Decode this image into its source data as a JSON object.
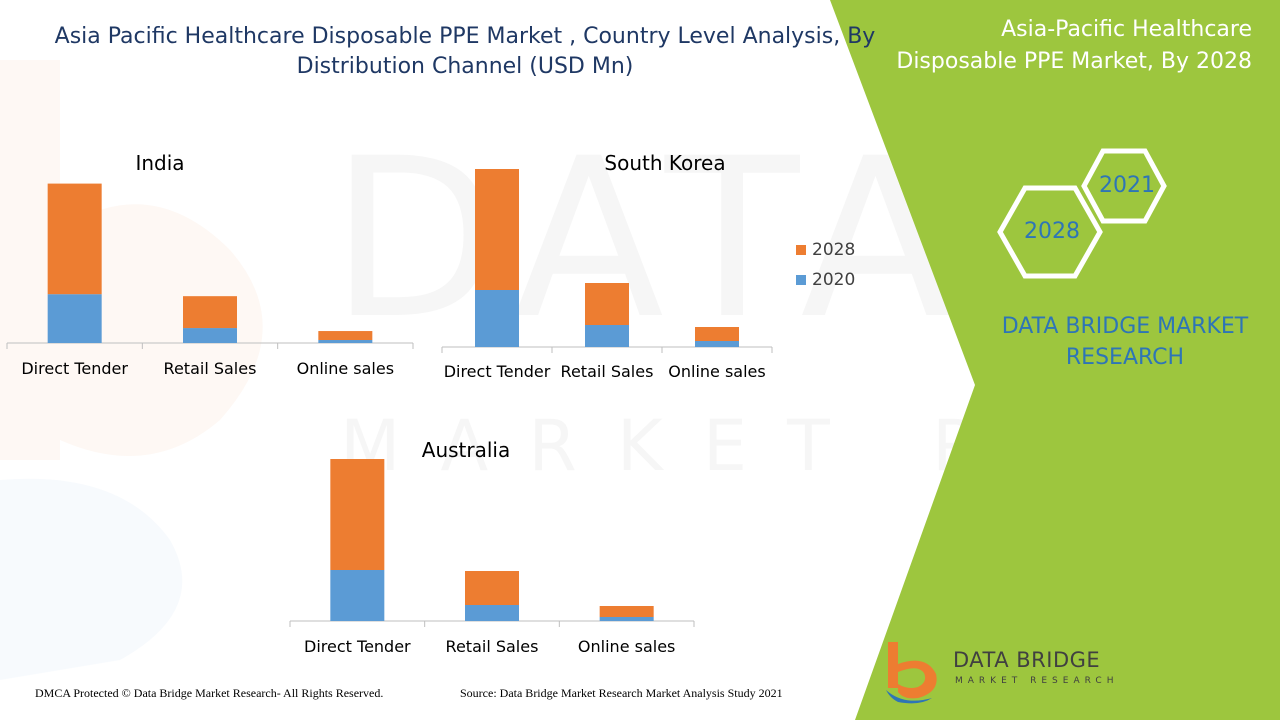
{
  "header": {
    "title": "Asia Pacific Healthcare Disposable PPE Market , Country Level Analysis, By Distribution Channel (USD Mn)"
  },
  "side_panel": {
    "title_line1": "Asia-Pacific Healthcare",
    "title_line2": "Disposable PPE Market, By 2028",
    "hex_year_a": "2021",
    "hex_year_b": "2028",
    "brand_line1": "DATA BRIDGE MARKET",
    "brand_line2": "RESEARCH",
    "panel_color": "#9dc63e"
  },
  "legend": {
    "items": [
      {
        "name": "2028",
        "color": "#ed7d31"
      },
      {
        "name": "2020",
        "color": "#5b9bd5"
      }
    ]
  },
  "chart_data": [
    {
      "type": "bar",
      "stacked": true,
      "title": "India",
      "categories": [
        "Direct Tender",
        "Retail Sales",
        "Online sales"
      ],
      "series": [
        {
          "name": "2020",
          "values": [
            49,
            15,
            3
          ]
        },
        {
          "name": "2028",
          "values": [
            111,
            32,
            9
          ]
        }
      ],
      "ylim": [
        0,
        180
      ]
    },
    {
      "type": "bar",
      "stacked": true,
      "title": "South Korea",
      "categories": [
        "Direct Tender",
        "Retail Sales",
        "Online sales"
      ],
      "series": [
        {
          "name": "2020",
          "values": [
            57,
            22,
            6
          ]
        },
        {
          "name": "2028",
          "values": [
            121,
            42,
            14
          ]
        }
      ],
      "ylim": [
        0,
        180
      ]
    },
    {
      "type": "bar",
      "stacked": true,
      "title": "Australia",
      "categories": [
        "Direct Tender",
        "Retail Sales",
        "Online sales"
      ],
      "series": [
        {
          "name": "2020",
          "values": [
            51,
            16,
            4
          ]
        },
        {
          "name": "2028",
          "values": [
            111,
            34,
            11
          ]
        }
      ],
      "ylim": [
        0,
        180
      ]
    }
  ],
  "footer": {
    "copyright": "DMCA Protected © Data Bridge Market Research- All Rights Reserved.",
    "source": "Source: Data Bridge Market Research Market Analysis Study 2021"
  },
  "logo": {
    "name": "DATA BRIDGE",
    "sub": "MARKET RESEARCH"
  }
}
